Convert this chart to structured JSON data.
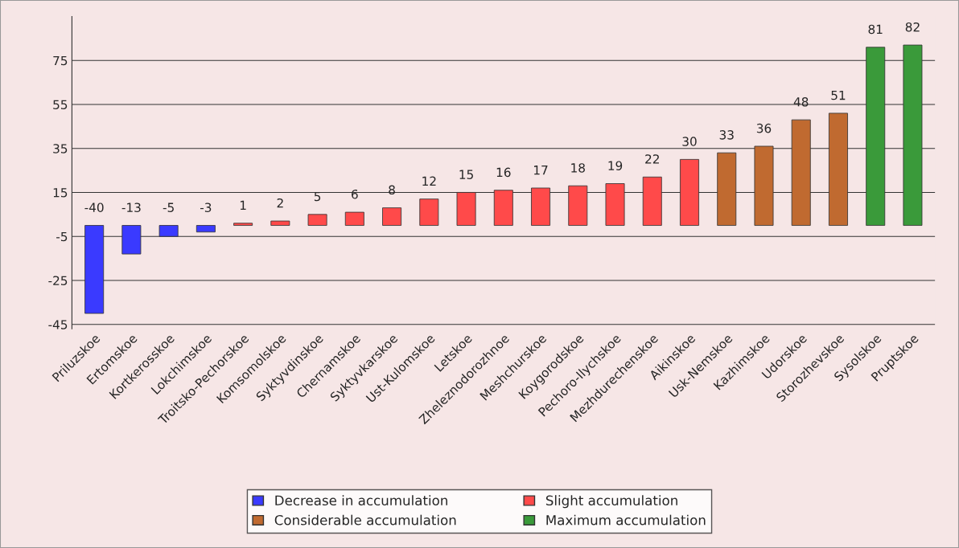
{
  "chart_data": {
    "type": "bar",
    "categories": [
      "Priluzskoe",
      "Ertomskoe",
      "Kortkerosskoe",
      "Lokchimskoe",
      "Troitsko-Pechorskoe",
      "Komsomolskoe",
      "Syktyvdinskoe",
      "Chernamskoe",
      "Syktyvkarskoe",
      "Ust-Kulomskoe",
      "Letskoe",
      "Zheleznodorozhnoe",
      "Meshchurskoe",
      "Koygorodskoe",
      "Pechoro-Ilychskoe",
      "Mezhdurechenskoe",
      "Aikinskoe",
      "Usk-Nemskoe",
      "Kazhimskoe",
      "Udorskoe",
      "Storozhevskoe",
      "Sysolskoe",
      "Pruptskoe"
    ],
    "series": [
      {
        "name": "Decrease in accumulation",
        "color": "#3a3aff",
        "values": [
          -40,
          -13,
          -5,
          -3,
          null,
          null,
          null,
          null,
          null,
          null,
          null,
          null,
          null,
          null,
          null,
          null,
          null,
          null,
          null,
          null,
          null,
          null,
          null
        ]
      },
      {
        "name": "Slight accumulation",
        "color": "#ff4a4a",
        "values": [
          null,
          null,
          null,
          null,
          1,
          2,
          5,
          6,
          8,
          12,
          15,
          16,
          17,
          18,
          19,
          22,
          30,
          null,
          null,
          null,
          null,
          null,
          null
        ]
      },
      {
        "name": "Considerable accumulation",
        "color": "#c06a30",
        "values": [
          null,
          null,
          null,
          null,
          null,
          null,
          null,
          null,
          null,
          null,
          null,
          null,
          null,
          null,
          null,
          null,
          null,
          33,
          36,
          48,
          51,
          null,
          null
        ]
      },
      {
        "name": "Maximum accumulation",
        "color": "#3a9a3a",
        "values": [
          null,
          null,
          null,
          null,
          null,
          null,
          null,
          null,
          null,
          null,
          null,
          null,
          null,
          null,
          null,
          null,
          null,
          null,
          null,
          null,
          null,
          81,
          82
        ]
      }
    ],
    "ylim": [
      -47,
      95
    ],
    "yticks": [
      -45,
      -25,
      -5,
      15,
      35,
      55,
      75
    ],
    "grid": "y",
    "legend": "bottom",
    "data_labels": true
  }
}
